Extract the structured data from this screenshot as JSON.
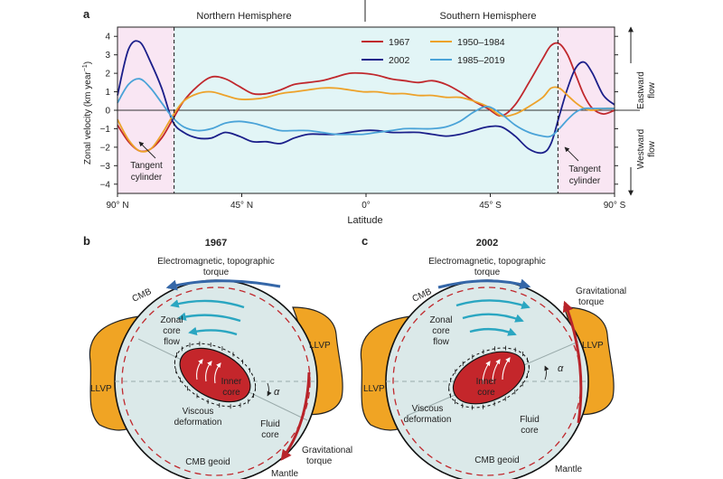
{
  "panel_a": {
    "label": "a",
    "hemisphere_left": "Northern Hemisphere",
    "hemisphere_right": "Southern Hemisphere",
    "ylabel": "Zonal velocity (km year",
    "ylabel_exp": "−1",
    "ylabel_close": ")",
    "xlabel": "Latitude",
    "right_top_label_1": "Eastward",
    "right_top_label_2": "flow",
    "right_bottom_label_1": "Westward",
    "right_bottom_label_2": "flow",
    "tangent_left_1": "Tangent",
    "tangent_left_2": "cylinder",
    "tangent_right_1": "Tangent",
    "tangent_right_2": "cylinder",
    "colors": {
      "pink_band": "#f9e6f3",
      "cyan_band": "#e2f5f6",
      "s1967": "#c0282d",
      "s2002": "#1b1f8a",
      "s1950": "#eda22a",
      "s1985": "#4aa3d8"
    }
  },
  "chart_data": {
    "type": "line",
    "xlabel": "Latitude",
    "ylabel": "Zonal velocity (km year−1)",
    "xlim": [
      90,
      -90
    ],
    "ylim": [
      -4.5,
      4.5
    ],
    "x_ticks": [
      {
        "value": 90,
        "label": "90° N"
      },
      {
        "value": 45,
        "label": "45° N"
      },
      {
        "value": 0,
        "label": "0°"
      },
      {
        "value": -45,
        "label": "45° S"
      },
      {
        "value": -90,
        "label": "90° S"
      }
    ],
    "y_ticks": [
      4,
      3,
      2,
      1,
      0,
      -1,
      -2,
      -3,
      -4
    ],
    "tangent_cylinder_lat": [
      69.5,
      -69.5
    ],
    "legend": "top-right",
    "series": [
      {
        "name": "1967",
        "color": "#c0282d",
        "x": [
          90,
          86,
          82,
          78,
          74,
          70,
          66,
          61,
          56,
          51,
          46,
          41,
          36,
          31,
          26,
          21,
          16,
          11,
          6,
          1,
          -4,
          -9,
          -14,
          -19,
          -24,
          -29,
          -34,
          -39,
          -44,
          -49,
          -54,
          -59,
          -64,
          -67,
          -70,
          -73,
          -76,
          -79,
          -82,
          -86,
          -90
        ],
        "y": [
          -0.8,
          -1.7,
          -2.2,
          -2.1,
          -1.5,
          -0.5,
          0.5,
          1.3,
          1.8,
          1.7,
          1.3,
          0.9,
          0.9,
          1.1,
          1.4,
          1.5,
          1.6,
          1.8,
          2.0,
          2.0,
          1.9,
          1.7,
          1.6,
          1.5,
          1.6,
          1.4,
          1.0,
          0.5,
          0.1,
          -0.3,
          0.3,
          1.5,
          2.8,
          3.5,
          3.6,
          3.0,
          1.9,
          0.8,
          0.1,
          -0.2,
          0.0
        ]
      },
      {
        "name": "2002",
        "color": "#1b1f8a",
        "x": [
          90,
          86,
          82,
          78,
          74,
          70,
          66,
          61,
          56,
          51,
          46,
          41,
          36,
          31,
          26,
          21,
          16,
          11,
          6,
          1,
          -4,
          -9,
          -14,
          -19,
          -24,
          -29,
          -34,
          -39,
          -44,
          -49,
          -54,
          -59,
          -64,
          -67,
          -70,
          -73,
          -76,
          -79,
          -82,
          -86,
          -90
        ],
        "y": [
          0.8,
          3.3,
          3.7,
          2.6,
          1.2,
          -0.6,
          -1.2,
          -1.5,
          -1.5,
          -1.2,
          -1.4,
          -1.7,
          -1.7,
          -1.8,
          -1.5,
          -1.3,
          -1.3,
          -1.3,
          -1.2,
          -1.1,
          -1.1,
          -1.2,
          -1.2,
          -1.2,
          -1.3,
          -1.4,
          -1.3,
          -1.1,
          -0.9,
          -0.9,
          -1.4,
          -2.1,
          -2.3,
          -1.8,
          -0.3,
          1.2,
          2.3,
          2.6,
          2.0,
          0.8,
          0.3
        ]
      },
      {
        "name": "1950–1984",
        "color": "#eda22a",
        "x": [
          90,
          86,
          82,
          78,
          74,
          70,
          66,
          61,
          56,
          51,
          46,
          41,
          36,
          31,
          26,
          21,
          16,
          11,
          6,
          1,
          -4,
          -9,
          -14,
          -19,
          -24,
          -29,
          -34,
          -39,
          -44,
          -49,
          -54,
          -59,
          -64,
          -67,
          -70,
          -73,
          -76,
          -79,
          -82,
          -86,
          -90
        ],
        "y": [
          -0.5,
          -1.6,
          -2.2,
          -2.1,
          -1.3,
          -0.3,
          0.5,
          0.9,
          1.0,
          0.8,
          0.6,
          0.6,
          0.7,
          0.9,
          1.0,
          1.1,
          1.2,
          1.2,
          1.1,
          1.0,
          1.0,
          0.9,
          0.9,
          0.8,
          0.8,
          0.7,
          0.7,
          0.5,
          0.2,
          -0.3,
          -0.2,
          0.2,
          0.7,
          1.2,
          1.2,
          0.8,
          0.4,
          0.1,
          0.0,
          0.1,
          0.1
        ]
      },
      {
        "name": "1985–2019",
        "color": "#4aa3d8",
        "x": [
          90,
          86,
          82,
          78,
          74,
          70,
          66,
          61,
          56,
          51,
          46,
          41,
          36,
          31,
          26,
          21,
          16,
          11,
          6,
          1,
          -4,
          -9,
          -14,
          -19,
          -24,
          -29,
          -34,
          -39,
          -44,
          -49,
          -54,
          -59,
          -64,
          -67,
          -70,
          -73,
          -76,
          -79,
          -82,
          -86,
          -90
        ],
        "y": [
          0.4,
          1.4,
          1.7,
          1.2,
          0.4,
          -0.4,
          -0.9,
          -1.1,
          -1.0,
          -0.7,
          -0.6,
          -0.7,
          -0.9,
          -1.1,
          -1.1,
          -1.1,
          -1.2,
          -1.3,
          -1.3,
          -1.3,
          -1.2,
          -1.1,
          -1.0,
          -1.0,
          -1.0,
          -0.9,
          -0.6,
          -0.1,
          0.2,
          -0.2,
          -0.8,
          -1.2,
          -1.4,
          -1.4,
          -1.0,
          -0.5,
          -0.1,
          0.1,
          0.1,
          0.1,
          0.1
        ]
      }
    ]
  },
  "panel_b": {
    "label": "b",
    "year": "1967",
    "torque_top_1": "Electromagnetic, topographic",
    "torque_top_2": "torque",
    "cmb": "CMB",
    "zonal_1": "Zonal",
    "zonal_2": "core",
    "zonal_3": "flow",
    "llvp": "LLVP",
    "inner_1": "Inner",
    "inner_2": "core",
    "alpha": "α",
    "viscous_1": "Viscous",
    "viscous_2": "deformation",
    "fluid_1": "Fluid",
    "fluid_2": "core",
    "cmb_geoid": "CMB geoid",
    "grav_1": "Gravitational",
    "grav_2": "torque",
    "mantle": "Mantle"
  },
  "panel_c": {
    "label": "c",
    "year": "2002",
    "torque_top_1": "Electromagnetic, topographic",
    "torque_top_2": "torque",
    "cmb": "CMB",
    "zonal_1": "Zonal",
    "zonal_2": "core",
    "zonal_3": "flow",
    "llvp": "LLVP",
    "inner_1": "Inner",
    "inner_2": "core",
    "alpha": "α",
    "viscous_1": "Viscous",
    "viscous_2": "deformation",
    "fluid_1": "Fluid",
    "fluid_2": "core",
    "cmb_geoid": "CMB geoid",
    "grav_1": "Gravitational",
    "grav_2": "torque",
    "mantle": "Mantle"
  }
}
